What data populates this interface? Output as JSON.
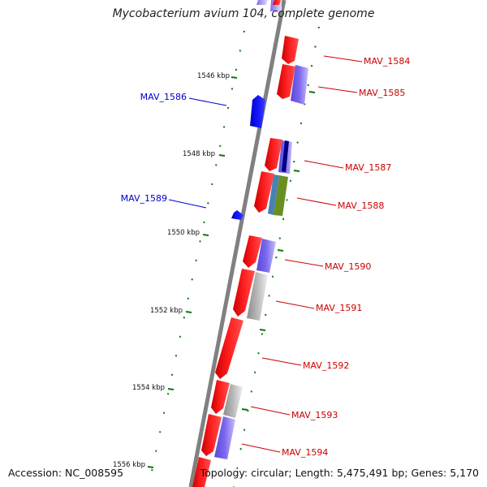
{
  "title": "Mycobacterium avium 104, complete genome",
  "footer": {
    "accession": "Accession: NC_008595",
    "summary": "Topology: circular; Length: 5,475,491 bp; Genes: 5,170"
  },
  "ticks": [
    "1546 kbp",
    "1548 kbp",
    "1550 kbp",
    "1552 kbp",
    "1554 kbp",
    "1556 kbp"
  ],
  "genes": [
    {
      "name": "",
      "strand": "forward"
    },
    {
      "name": "MAV_1584",
      "strand": "forward"
    },
    {
      "name": "MAV_1585",
      "strand": "forward"
    },
    {
      "name": "MAV_1586",
      "strand": "reverse"
    },
    {
      "name": "MAV_1587",
      "strand": "forward"
    },
    {
      "name": "MAV_1588",
      "strand": "forward"
    },
    {
      "name": "MAV_1589",
      "strand": "reverse"
    },
    {
      "name": "MAV_1590",
      "strand": "forward"
    },
    {
      "name": "MAV_1591",
      "strand": "forward"
    },
    {
      "name": "MAV_1592",
      "strand": "forward"
    },
    {
      "name": "MAV_1593",
      "strand": "forward"
    },
    {
      "name": "MAV_1594",
      "strand": "forward"
    }
  ],
  "colors": {
    "backbone": "#808080",
    "forward_gene": "#ff0000",
    "reverse_gene": "#0000ff",
    "tick": "#007700",
    "forward_label": "#cc0000",
    "reverse_label": "#0000cc",
    "feature_purple": "#7b68ee",
    "feature_gray": "#b0b0b0",
    "feature_navy": "#000080",
    "feature_steel": "#4682b4",
    "feature_olive": "#6b8e23"
  }
}
